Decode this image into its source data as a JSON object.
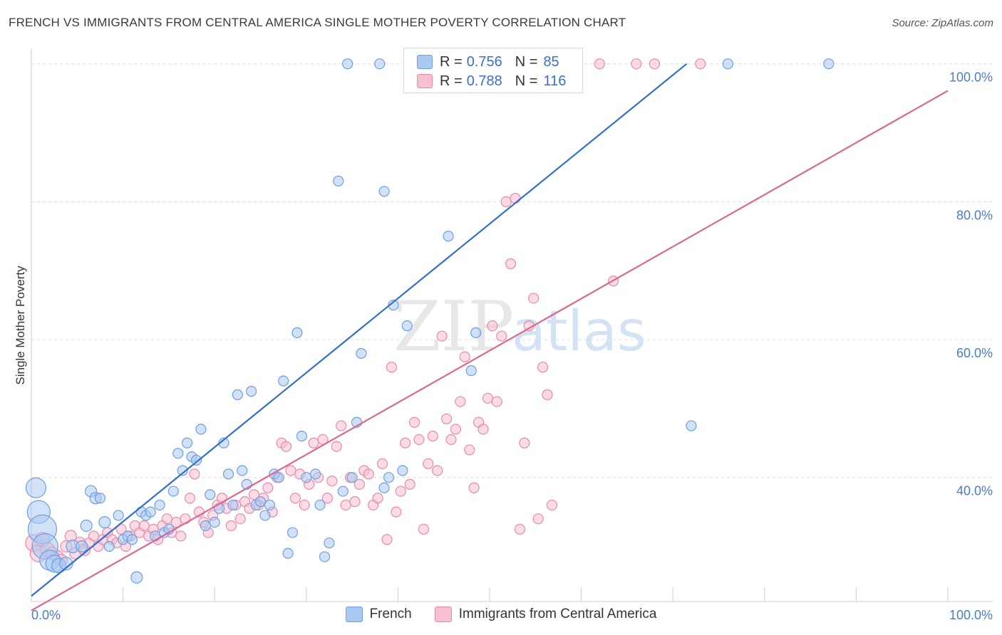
{
  "title": "FRENCH VS IMMIGRANTS FROM CENTRAL AMERICA SINGLE MOTHER POVERTY CORRELATION CHART",
  "source": "Source: ZipAtlas.com",
  "watermark": {
    "zip": "ZIP",
    "atlas": "atlas"
  },
  "legend": {
    "r_label": "R =",
    "n_label": "N =",
    "series": [
      {
        "r": "0.756",
        "n": "85"
      },
      {
        "r": "0.788",
        "n": "116"
      }
    ]
  },
  "colors": {
    "french_fill": "#a9c8f2",
    "french_stroke": "#6f9fe0",
    "french_line": "#2f6fce",
    "immig_fill": "#f7c0d1",
    "immig_stroke": "#e98aa8",
    "immig_line": "#e0668f",
    "tick": "#4a7cc9",
    "grid": "#dcdcdc"
  },
  "chart_data": {
    "type": "scatter",
    "title": "FRENCH VS IMMIGRANTS FROM CENTRAL AMERICA SINGLE MOTHER POVERTY CORRELATION CHART",
    "xlabel": "",
    "ylabel": "Single Mother Poverty",
    "xlim": [
      0,
      100
    ],
    "ylim": [
      22,
      101
    ],
    "x_tick_labels": [
      "0.0%",
      "100.0%"
    ],
    "y_ticks": [
      40,
      60,
      80,
      100
    ],
    "y_tick_labels": [
      "40.0%",
      "60.0%",
      "80.0%",
      "100.0%"
    ],
    "grid": true,
    "legend_placement": "bottom-center",
    "series": [
      {
        "name": "French",
        "r": 0.756,
        "n": 85,
        "trend": {
          "x0": 0,
          "y0": 22.8,
          "x1": 71.5,
          "y1": 100
        },
        "points": [
          [
            0.5,
            38.5,
            14
          ],
          [
            0.8,
            35,
            16
          ],
          [
            1.2,
            32.5,
            20
          ],
          [
            1.5,
            30,
            18
          ],
          [
            2,
            28,
            14
          ],
          [
            2.5,
            27.5,
            12
          ],
          [
            3,
            27.2,
            10
          ],
          [
            3.8,
            27.5,
            9
          ],
          [
            4.5,
            30,
            9
          ],
          [
            5.5,
            30,
            8
          ],
          [
            6,
            33,
            8
          ],
          [
            6.5,
            38,
            8
          ],
          [
            7,
            37,
            8
          ],
          [
            7.5,
            37,
            7
          ],
          [
            8,
            33.5,
            8
          ],
          [
            8.5,
            30,
            7
          ],
          [
            9.5,
            34.5,
            7
          ],
          [
            10,
            31,
            7
          ],
          [
            10.5,
            31.5,
            7
          ],
          [
            11,
            31,
            7
          ],
          [
            11.5,
            25.5,
            8
          ],
          [
            12,
            35,
            7
          ],
          [
            12.5,
            34.5,
            7
          ],
          [
            13,
            35,
            7
          ],
          [
            13.5,
            31.5,
            7
          ],
          [
            14,
            36,
            7
          ],
          [
            14.5,
            32,
            7
          ],
          [
            15,
            32.5,
            7
          ],
          [
            15.5,
            38,
            7
          ],
          [
            16,
            43.5,
            7
          ],
          [
            16.5,
            41,
            7
          ],
          [
            17,
            45,
            7
          ],
          [
            17.5,
            43,
            7
          ],
          [
            18,
            42.5,
            7
          ],
          [
            18.5,
            47,
            7
          ],
          [
            19,
            33,
            7
          ],
          [
            19.5,
            37.5,
            7
          ],
          [
            20,
            33.5,
            7
          ],
          [
            20.5,
            35.5,
            7
          ],
          [
            21,
            45,
            7
          ],
          [
            21.5,
            40.5,
            7
          ],
          [
            22,
            36,
            7
          ],
          [
            22.5,
            52,
            7
          ],
          [
            23,
            41,
            7
          ],
          [
            23.5,
            39,
            7
          ],
          [
            24,
            52.5,
            7
          ],
          [
            24.5,
            36,
            7
          ],
          [
            25,
            36.5,
            7
          ],
          [
            25.5,
            34.5,
            7
          ],
          [
            26,
            36,
            7
          ],
          [
            26.5,
            40.5,
            7
          ],
          [
            27,
            40,
            7
          ],
          [
            27.5,
            54,
            7
          ],
          [
            28,
            29,
            7
          ],
          [
            28.5,
            32,
            7
          ],
          [
            29,
            61,
            7
          ],
          [
            29.5,
            46,
            7
          ],
          [
            30,
            40,
            7
          ],
          [
            31,
            40.5,
            7
          ],
          [
            31.5,
            36,
            7
          ],
          [
            32,
            28.5,
            7
          ],
          [
            32.5,
            30.5,
            7
          ],
          [
            33.5,
            83,
            7
          ],
          [
            34,
            38,
            7
          ],
          [
            35,
            40,
            7
          ],
          [
            35.5,
            48,
            7
          ],
          [
            36,
            58,
            7
          ],
          [
            38.5,
            81.5,
            7
          ],
          [
            39,
            40,
            7
          ],
          [
            34.5,
            100,
            7
          ],
          [
            38,
            100,
            7
          ],
          [
            39.5,
            65,
            7
          ],
          [
            40.5,
            41,
            7
          ],
          [
            41,
            62,
            7
          ],
          [
            38.5,
            38.5,
            7
          ],
          [
            42,
            100,
            7
          ],
          [
            43,
            97,
            7
          ],
          [
            44,
            100,
            7
          ],
          [
            45.5,
            75,
            7
          ],
          [
            46.5,
            100,
            7
          ],
          [
            48,
            55.5,
            7
          ],
          [
            48.5,
            61,
            7
          ],
          [
            54.5,
            100,
            7
          ],
          [
            57,
            100,
            7
          ],
          [
            58,
            100,
            7
          ],
          [
            72,
            47.5,
            7
          ],
          [
            76,
            100,
            7
          ],
          [
            87,
            100,
            7
          ]
        ]
      },
      {
        "name": "Immigrants from Central America",
        "r": 0.788,
        "n": 116,
        "trend": {
          "x0": 0,
          "y0": 20.7,
          "x1": 100,
          "y1": 96.1
        },
        "points": [
          [
            0.3,
            30.5,
            12
          ],
          [
            0.8,
            29,
            12
          ],
          [
            1.2,
            31,
            10
          ],
          [
            1.8,
            29.5,
            10
          ],
          [
            2.3,
            29,
            9
          ],
          [
            2.8,
            28.5,
            9
          ],
          [
            3.3,
            28,
            8
          ],
          [
            3.8,
            30,
            8
          ],
          [
            4.3,
            31.5,
            8
          ],
          [
            4.8,
            29,
            8
          ],
          [
            5.3,
            30.5,
            8
          ],
          [
            5.8,
            29.5,
            8
          ],
          [
            6.3,
            30.5,
            7
          ],
          [
            6.8,
            31.5,
            7
          ],
          [
            7.3,
            30,
            7
          ],
          [
            7.8,
            31,
            7
          ],
          [
            8.3,
            32,
            7
          ],
          [
            8.8,
            31,
            7
          ],
          [
            9.3,
            30.5,
            7
          ],
          [
            9.8,
            32.5,
            7
          ],
          [
            10.3,
            30,
            7
          ],
          [
            10.8,
            31.5,
            7
          ],
          [
            11.3,
            33,
            7
          ],
          [
            11.8,
            32,
            7
          ],
          [
            12.3,
            33,
            7
          ],
          [
            12.8,
            31.5,
            7
          ],
          [
            13.3,
            32.5,
            7
          ],
          [
            13.8,
            31,
            7
          ],
          [
            14.3,
            33,
            7
          ],
          [
            14.8,
            34,
            7
          ],
          [
            15.3,
            32,
            7
          ],
          [
            15.8,
            33.5,
            7
          ],
          [
            16.3,
            31.5,
            7
          ],
          [
            16.8,
            34,
            7
          ],
          [
            17.3,
            37,
            7
          ],
          [
            17.8,
            40.5,
            7
          ],
          [
            18.3,
            35,
            7
          ],
          [
            18.8,
            33.5,
            7
          ],
          [
            19.3,
            32,
            7
          ],
          [
            19.8,
            34.5,
            7
          ],
          [
            20.3,
            36,
            7
          ],
          [
            20.8,
            37,
            7
          ],
          [
            21.3,
            35.5,
            7
          ],
          [
            21.8,
            33,
            7
          ],
          [
            22.3,
            36,
            7
          ],
          [
            22.8,
            34,
            7
          ],
          [
            23.3,
            36.5,
            7
          ],
          [
            23.8,
            35.5,
            7
          ],
          [
            24.3,
            37.5,
            7
          ],
          [
            24.8,
            36,
            7
          ],
          [
            25.3,
            37,
            7
          ],
          [
            25.8,
            38.5,
            7
          ],
          [
            26.3,
            35,
            7
          ],
          [
            26.8,
            40,
            7
          ],
          [
            27.3,
            45,
            7
          ],
          [
            27.8,
            44.5,
            7
          ],
          [
            28.3,
            41,
            7
          ],
          [
            28.8,
            37,
            7
          ],
          [
            29.3,
            40.5,
            7
          ],
          [
            29.8,
            36,
            7
          ],
          [
            30.3,
            39,
            7
          ],
          [
            30.8,
            45,
            7
          ],
          [
            31.3,
            40,
            7
          ],
          [
            31.8,
            45.5,
            7
          ],
          [
            32.3,
            37,
            7
          ],
          [
            32.8,
            39.5,
            7
          ],
          [
            33.3,
            44.5,
            7
          ],
          [
            33.8,
            47.5,
            7
          ],
          [
            34.3,
            36,
            7
          ],
          [
            34.8,
            40,
            7
          ],
          [
            35.3,
            36.5,
            7
          ],
          [
            35.8,
            39,
            7
          ],
          [
            36.3,
            41,
            7
          ],
          [
            36.8,
            40.5,
            7
          ],
          [
            37.3,
            36,
            7
          ],
          [
            37.8,
            37,
            7
          ],
          [
            38.3,
            42,
            7
          ],
          [
            38.8,
            31,
            7
          ],
          [
            39.3,
            56,
            7
          ],
          [
            39.8,
            35,
            7
          ],
          [
            40.3,
            38,
            7
          ],
          [
            40.8,
            45,
            7
          ],
          [
            41.3,
            39,
            7
          ],
          [
            41.8,
            48,
            7
          ],
          [
            42.3,
            45.5,
            7
          ],
          [
            42.8,
            32.5,
            7
          ],
          [
            43.3,
            42,
            7
          ],
          [
            43.8,
            46,
            7
          ],
          [
            44.3,
            41,
            7
          ],
          [
            44.8,
            60.5,
            7
          ],
          [
            45.3,
            48.5,
            7
          ],
          [
            45.8,
            45.5,
            7
          ],
          [
            46.3,
            47,
            7
          ],
          [
            46.8,
            51,
            7
          ],
          [
            47.3,
            57.5,
            7
          ],
          [
            47.8,
            44,
            7
          ],
          [
            48.3,
            38.5,
            7
          ],
          [
            48.8,
            48,
            7
          ],
          [
            49.3,
            47,
            7
          ],
          [
            49.8,
            51.5,
            7
          ],
          [
            50.3,
            62,
            7
          ],
          [
            50.8,
            51,
            7
          ],
          [
            51.3,
            60.5,
            7
          ],
          [
            51.8,
            80,
            7
          ],
          [
            52.3,
            71,
            7
          ],
          [
            52.8,
            80.5,
            7
          ],
          [
            53.3,
            32.5,
            7
          ],
          [
            53.8,
            45,
            7
          ],
          [
            54.3,
            62,
            7
          ],
          [
            54.8,
            66,
            7
          ],
          [
            55.3,
            34,
            7
          ],
          [
            55.8,
            56,
            7
          ],
          [
            56.3,
            52,
            7
          ],
          [
            56.8,
            36,
            7
          ],
          [
            58,
            100,
            7
          ],
          [
            62,
            100,
            7
          ],
          [
            63.5,
            68.5,
            7
          ],
          [
            66,
            100,
            7
          ],
          [
            68,
            100,
            7
          ],
          [
            73,
            100,
            7
          ]
        ]
      }
    ]
  }
}
